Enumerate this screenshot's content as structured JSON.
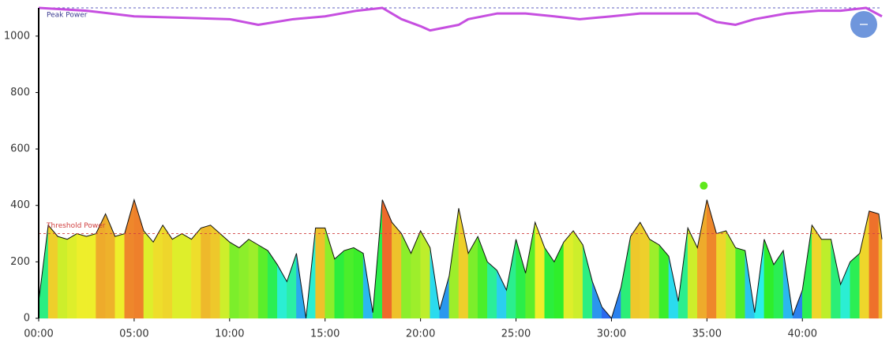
{
  "chart_data": {
    "type": "area",
    "xlim": [
      0,
      2650
    ],
    "ylim": [
      0,
      1100
    ],
    "yticks": [
      0,
      200,
      400,
      600,
      800,
      1000
    ],
    "xticks": [
      {
        "value": 0,
        "label": "00:00"
      },
      {
        "value": 300,
        "label": "05:00"
      },
      {
        "value": 600,
        "label": "10:00"
      },
      {
        "value": 900,
        "label": "15:00"
      },
      {
        "value": 1200,
        "label": "20:00"
      },
      {
        "value": 1500,
        "label": "25:00"
      },
      {
        "value": 1800,
        "label": "30:00"
      },
      {
        "value": 2100,
        "label": "35:00"
      },
      {
        "value": 2400,
        "label": "40:00"
      }
    ],
    "x": [
      0,
      30,
      60,
      90,
      120,
      150,
      180,
      210,
      240,
      270,
      300,
      330,
      360,
      390,
      420,
      450,
      480,
      510,
      540,
      570,
      600,
      630,
      660,
      690,
      720,
      750,
      780,
      810,
      840,
      870,
      900,
      930,
      960,
      990,
      1020,
      1050,
      1080,
      1110,
      1140,
      1170,
      1200,
      1230,
      1260,
      1290,
      1320,
      1350,
      1380,
      1410,
      1440,
      1470,
      1500,
      1530,
      1560,
      1590,
      1620,
      1650,
      1680,
      1710,
      1740,
      1770,
      1800,
      1830,
      1860,
      1890,
      1920,
      1950,
      1980,
      2010,
      2040,
      2070,
      2100,
      2130,
      2160,
      2190,
      2220,
      2250,
      2280,
      2310,
      2340,
      2370,
      2400,
      2430,
      2460,
      2490,
      2520,
      2550,
      2580,
      2610,
      2640,
      2650
    ],
    "series": [
      {
        "values": [
          60,
          330,
          290,
          280,
          300,
          290,
          300,
          370,
          290,
          300,
          420,
          310,
          270,
          330,
          280,
          300,
          280,
          320,
          330,
          300,
          270,
          250,
          280,
          260,
          240,
          190,
          130,
          230,
          0,
          320,
          320,
          210,
          240,
          250,
          230,
          20,
          420,
          340,
          300,
          230,
          310,
          250,
          30,
          150,
          390,
          230,
          290,
          200,
          170,
          100,
          280,
          160,
          340,
          250,
          200,
          270,
          310,
          260,
          130,
          40,
          0,
          110,
          290,
          340,
          280,
          260,
          220,
          60,
          320,
          250,
          420,
          300,
          310,
          250,
          240,
          20,
          280,
          190,
          240,
          10,
          100,
          330,
          280,
          280,
          120,
          200,
          230,
          380,
          370,
          280
        ]
      },
      {
        "name": "Peak Power",
        "color": "#c64fe0",
        "x": [
          0,
          150,
          300,
          450,
          600,
          690,
          800,
          900,
          1000,
          1080,
          1140,
          1200,
          1230,
          1320,
          1350,
          1440,
          1530,
          1620,
          1700,
          1800,
          1890,
          1980,
          2070,
          2130,
          2190,
          2250,
          2350,
          2450,
          2520,
          2600,
          2650
        ],
        "values": [
          1100,
          1090,
          1070,
          1065,
          1060,
          1040,
          1060,
          1070,
          1090,
          1100,
          1060,
          1035,
          1020,
          1040,
          1060,
          1080,
          1080,
          1070,
          1060,
          1070,
          1080,
          1080,
          1080,
          1050,
          1040,
          1060,
          1080,
          1090,
          1090,
          1100,
          1070
        ]
      }
    ],
    "threshold": {
      "label": "Threshold Power",
      "value": 300,
      "color": "#d04040"
    },
    "max_marker": {
      "x": 2090,
      "value": 470,
      "color": "#5fe81c"
    }
  }
}
